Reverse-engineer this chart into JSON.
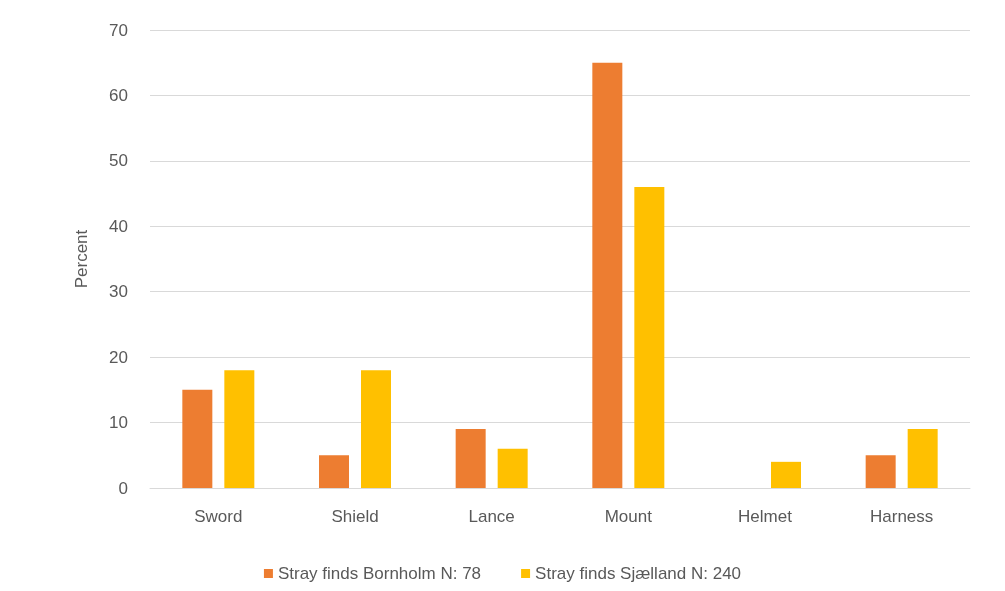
{
  "chart_data": {
    "type": "bar",
    "ylabel": "Percent",
    "categories": [
      "Sword",
      "Shield",
      "Lance",
      "Mount",
      "Helmet",
      "Harness"
    ],
    "series": [
      {
        "name": "Stray finds Bornholm N: 78",
        "color": "#ed7d31",
        "values": [
          15,
          5,
          9,
          65,
          0,
          5
        ]
      },
      {
        "name": "Stray finds Sjælland N: 240",
        "color": "#ffc000",
        "values": [
          18,
          18,
          6,
          46,
          4,
          9
        ]
      }
    ],
    "ylim": [
      0,
      70
    ],
    "yticks": [
      0,
      10,
      20,
      30,
      40,
      50,
      60,
      70
    ],
    "grid": "y",
    "legend": "bottom"
  }
}
